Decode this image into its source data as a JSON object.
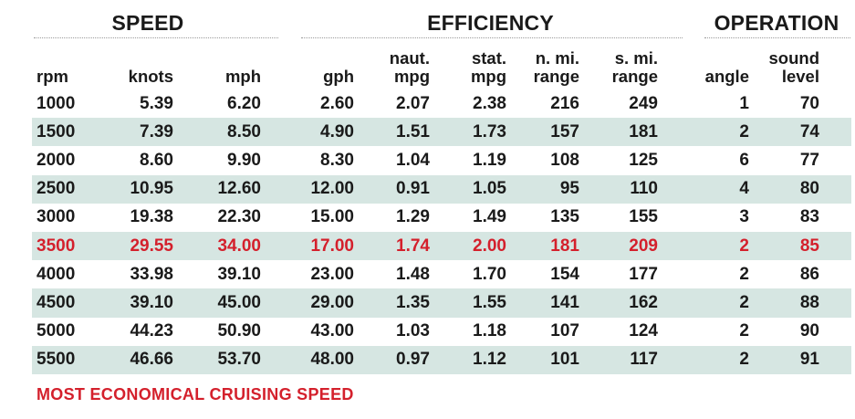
{
  "groups": {
    "speed": "SPEED",
    "efficiency": "EFFICIENCY",
    "operation": "OPERATION"
  },
  "columns": [
    "rpm",
    "knots",
    "mph",
    "gph",
    "naut.\nmpg",
    "stat.\nmpg",
    "n. mi.\nrange",
    "s. mi.\nrange",
    "angle",
    "sound\nlevel"
  ],
  "rows": [
    [
      "1000",
      "5.39",
      "6.20",
      "2.60",
      "2.07",
      "2.38",
      "216",
      "249",
      "1",
      "70"
    ],
    [
      "1500",
      "7.39",
      "8.50",
      "4.90",
      "1.51",
      "1.73",
      "157",
      "181",
      "2",
      "74"
    ],
    [
      "2000",
      "8.60",
      "9.90",
      "8.30",
      "1.04",
      "1.19",
      "108",
      "125",
      "6",
      "77"
    ],
    [
      "2500",
      "10.95",
      "12.60",
      "12.00",
      "0.91",
      "1.05",
      "95",
      "110",
      "4",
      "80"
    ],
    [
      "3000",
      "19.38",
      "22.30",
      "15.00",
      "1.29",
      "1.49",
      "135",
      "155",
      "3",
      "83"
    ],
    [
      "3500",
      "29.55",
      "34.00",
      "17.00",
      "1.74",
      "2.00",
      "181",
      "209",
      "2",
      "85"
    ],
    [
      "4000",
      "33.98",
      "39.10",
      "23.00",
      "1.48",
      "1.70",
      "154",
      "177",
      "2",
      "86"
    ],
    [
      "4500",
      "39.10",
      "45.00",
      "29.00",
      "1.35",
      "1.55",
      "141",
      "162",
      "2",
      "88"
    ],
    [
      "5000",
      "44.23",
      "50.90",
      "43.00",
      "1.03",
      "1.18",
      "107",
      "124",
      "2",
      "90"
    ],
    [
      "5500",
      "46.66",
      "53.70",
      "48.00",
      "0.97",
      "1.12",
      "101",
      "117",
      "2",
      "91"
    ]
  ],
  "highlight_row_rpm": "3500",
  "note": "MOST ECONOMICAL CRUISING SPEED",
  "colors": {
    "shade": "#d6e6e2",
    "highlight": "#d4202c",
    "text": "#1a1a1a"
  }
}
